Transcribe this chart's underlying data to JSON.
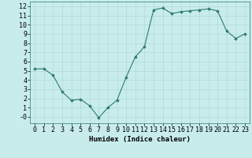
{
  "x": [
    0,
    1,
    2,
    3,
    4,
    5,
    6,
    7,
    8,
    9,
    10,
    11,
    12,
    13,
    14,
    15,
    16,
    17,
    18,
    19,
    20,
    21,
    22,
    23
  ],
  "y": [
    5.2,
    5.2,
    4.5,
    2.7,
    1.8,
    1.9,
    1.2,
    -0.1,
    1.0,
    1.8,
    4.3,
    6.5,
    7.6,
    11.6,
    11.8,
    11.2,
    11.4,
    11.5,
    11.6,
    11.7,
    11.5,
    9.3,
    8.5,
    9.0
  ],
  "line_color": "#2d7a6e",
  "marker": "D",
  "marker_size": 1.8,
  "bg_color": "#c8ecec",
  "grid_color": "#b0d8d8",
  "xlabel": "Humidex (Indice chaleur)",
  "xlabel_fontsize": 6.5,
  "tick_fontsize": 6,
  "ylim": [
    -0.7,
    12.5
  ],
  "xlim": [
    -0.5,
    23.5
  ],
  "yticks": [
    0,
    1,
    2,
    3,
    4,
    5,
    6,
    7,
    8,
    9,
    10,
    11,
    12
  ],
  "ytick_labels": [
    "-0",
    "1",
    "2",
    "3",
    "4",
    "5",
    "6",
    "7",
    "8",
    "9",
    "10",
    "11",
    "12"
  ]
}
